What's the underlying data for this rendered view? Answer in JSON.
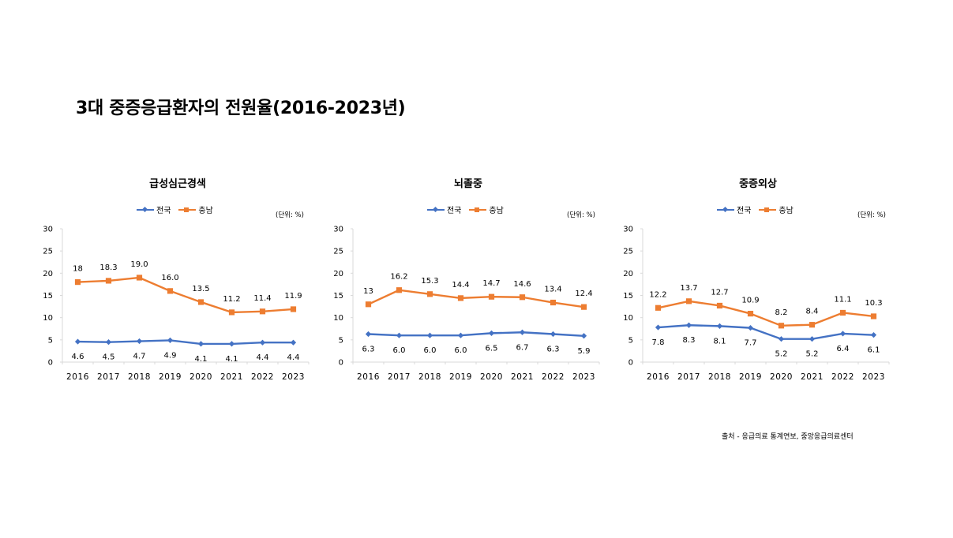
{
  "title": "3대 중증응급환자의 전원율(2016-2023년)",
  "source": "출처 - 응급의료 통계연보, 중앙응급의료센터",
  "colors": {
    "national": "#4472C4",
    "chungnam": "#ED7D31",
    "axis": "#D9D9D9"
  },
  "chart_data": [
    {
      "type": "line",
      "title": "급성심근경색",
      "unit": "(단위: %)",
      "categories": [
        "2016",
        "2017",
        "2018",
        "2019",
        "2020",
        "2021",
        "2022",
        "2023"
      ],
      "ylim": [
        0,
        30
      ],
      "yticks": [
        "0",
        "5",
        "10",
        "15",
        "20",
        "25",
        "30"
      ],
      "legend_position": "top",
      "series": [
        {
          "name": "전국",
          "marker": "diamond",
          "values": [
            4.6,
            4.5,
            4.7,
            4.9,
            4.1,
            4.1,
            4.4,
            4.4
          ],
          "labels": [
            "4.6",
            "4.5",
            "4.7",
            "4.9",
            "4.1",
            "4.1",
            "4.4",
            "4.4"
          ]
        },
        {
          "name": "충남",
          "marker": "square",
          "values": [
            18,
            18.3,
            19.0,
            16.0,
            13.5,
            11.2,
            11.4,
            11.9
          ],
          "labels": [
            "18",
            "18.3",
            "19.0",
            "16.0",
            "13.5",
            "11.2",
            "11.4",
            "11.9"
          ]
        }
      ]
    },
    {
      "type": "line",
      "title": "뇌졸중",
      "unit": "(단위: %)",
      "categories": [
        "2016",
        "2017",
        "2018",
        "2019",
        "2020",
        "2021",
        "2022",
        "2023"
      ],
      "ylim": [
        0,
        30
      ],
      "yticks": [
        "0",
        "5",
        "10",
        "15",
        "20",
        "25",
        "30"
      ],
      "legend_position": "top",
      "series": [
        {
          "name": "전국",
          "marker": "diamond",
          "values": [
            6.3,
            6.0,
            6.0,
            6.0,
            6.5,
            6.7,
            6.3,
            5.9
          ],
          "labels": [
            "6.3",
            "6.0",
            "6.0",
            "6.0",
            "6.5",
            "6.7",
            "6.3",
            "5.9"
          ]
        },
        {
          "name": "충남",
          "marker": "square",
          "values": [
            13,
            16.2,
            15.3,
            14.4,
            14.7,
            14.6,
            13.4,
            12.4
          ],
          "labels": [
            "13",
            "16.2",
            "15.3",
            "14.4",
            "14.7",
            "14.6",
            "13.4",
            "12.4"
          ]
        }
      ]
    },
    {
      "type": "line",
      "title": "중증외상",
      "unit": "(단위: %)",
      "categories": [
        "2016",
        "2017",
        "2018",
        "2019",
        "2020",
        "2021",
        "2022",
        "2023"
      ],
      "ylim": [
        0,
        30
      ],
      "yticks": [
        "0",
        "5",
        "10",
        "15",
        "20",
        "25",
        "30"
      ],
      "legend_position": "top",
      "series": [
        {
          "name": "전국",
          "marker": "diamond",
          "values": [
            7.8,
            8.3,
            8.1,
            7.7,
            5.2,
            5.2,
            6.4,
            6.1
          ],
          "labels": [
            "7.8",
            "8.3",
            "8.1",
            "7.7",
            "5.2",
            "5.2",
            "6.4",
            "6.1"
          ]
        },
        {
          "name": "충남",
          "marker": "square",
          "values": [
            12.2,
            13.7,
            12.7,
            10.9,
            8.2,
            8.4,
            11.1,
            10.3
          ],
          "labels": [
            "12.2",
            "13.7",
            "12.7",
            "10.9",
            "8.2",
            "8.4",
            "11.1",
            "10.3"
          ]
        }
      ]
    }
  ]
}
